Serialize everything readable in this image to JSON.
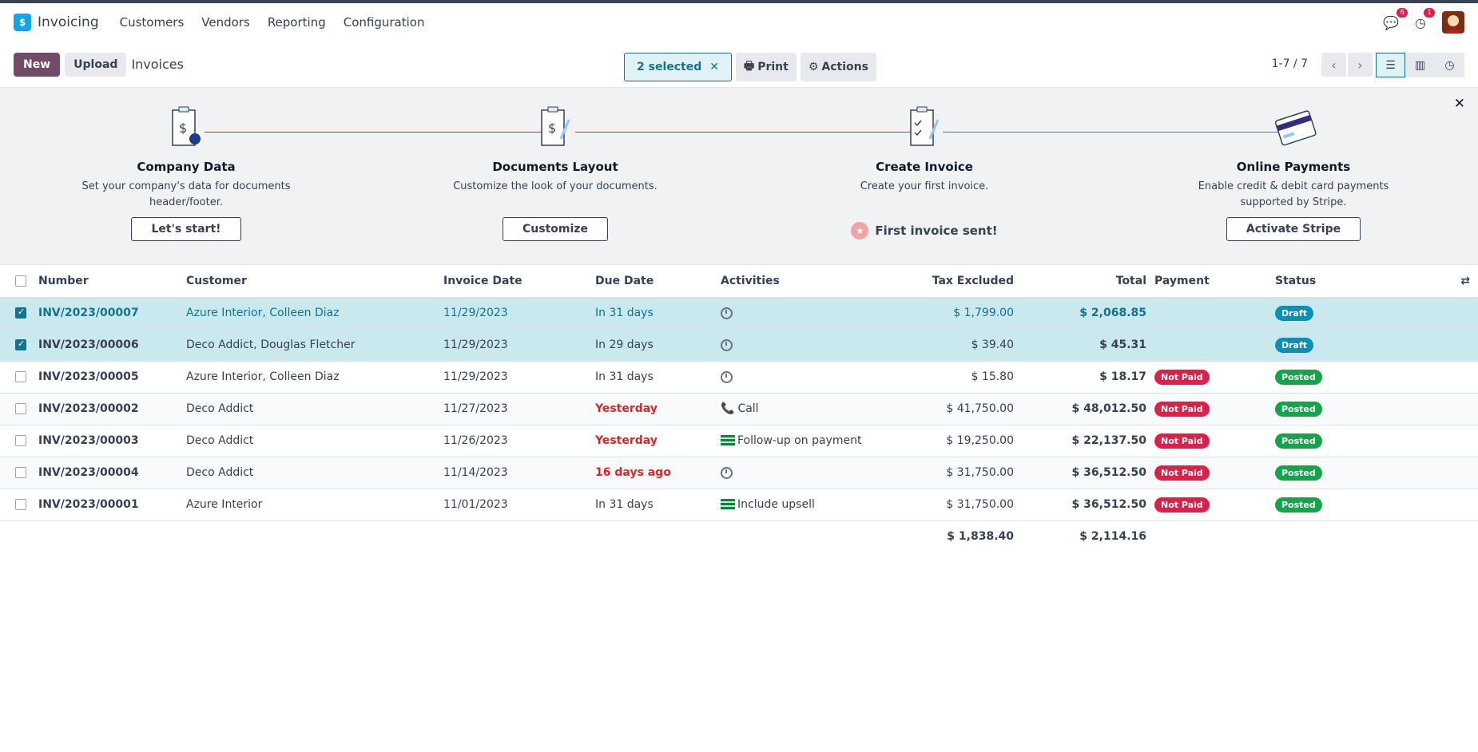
{
  "app": {
    "name": "Invoicing",
    "logo_icon": "invoicing-app-logo",
    "accent": "#714b67"
  },
  "nav": [
    "Customers",
    "Vendors",
    "Reporting",
    "Configuration"
  ],
  "systray": {
    "messages_count": "6",
    "activities_count": "1"
  },
  "control": {
    "new_label": "New",
    "upload_label": "Upload",
    "title": "Invoices",
    "selected_label": "2 selected",
    "print_label": "Print",
    "actions_label": "Actions",
    "pager": "1-7 / 7"
  },
  "onboarding": {
    "steps": [
      {
        "title": "Company Data",
        "desc": "Set your company's data for documents header/footer.",
        "button": "Let's start!"
      },
      {
        "title": "Documents Layout",
        "desc": "Customize the look of your documents.",
        "button": "Customize"
      },
      {
        "title": "Create Invoice",
        "desc": "Create your first invoice.",
        "done": "First invoice sent!"
      },
      {
        "title": "Online Payments",
        "desc": "Enable credit & debit card payments supported by Stripe.",
        "button": "Activate Stripe"
      }
    ]
  },
  "table": {
    "headers": {
      "number": "Number",
      "customer": "Customer",
      "invoice_date": "Invoice Date",
      "due_date": "Due Date",
      "activities": "Activities",
      "tax_excluded": "Tax Excluded",
      "total": "Total",
      "payment": "Payment",
      "status": "Status"
    },
    "rows": [
      {
        "number": "INV/2023/00007",
        "customer": "Azure Interior, Colleen Diaz",
        "invoice_date": "11/29/2023",
        "due_date": "In 31 days",
        "activity": "",
        "tax_excluded": "$ 1,799.00",
        "total": "$ 2,068.85",
        "payment": "",
        "status": "Draft"
      },
      {
        "number": "INV/2023/00006",
        "customer": "Deco Addict, Douglas Fletcher",
        "invoice_date": "11/29/2023",
        "due_date": "In 29 days",
        "activity": "",
        "tax_excluded": "$ 39.40",
        "total": "$ 45.31",
        "payment": "",
        "status": "Draft"
      },
      {
        "number": "INV/2023/00005",
        "customer": "Azure Interior, Colleen Diaz",
        "invoice_date": "11/29/2023",
        "due_date": "In 31 days",
        "activity": "",
        "tax_excluded": "$ 15.80",
        "total": "$ 18.17",
        "payment": "Not Paid",
        "status": "Posted"
      },
      {
        "number": "INV/2023/00002",
        "customer": "Deco Addict",
        "invoice_date": "11/27/2023",
        "due_date": "Yesterday",
        "activity": "Call",
        "tax_excluded": "$ 41,750.00",
        "total": "$ 48,012.50",
        "payment": "Not Paid",
        "status": "Posted"
      },
      {
        "number": "INV/2023/00003",
        "customer": "Deco Addict",
        "invoice_date": "11/26/2023",
        "due_date": "Yesterday",
        "activity": "Follow-up on payment",
        "tax_excluded": "$ 19,250.00",
        "total": "$ 22,137.50",
        "payment": "Not Paid",
        "status": "Posted"
      },
      {
        "number": "INV/2023/00004",
        "customer": "Deco Addict",
        "invoice_date": "11/14/2023",
        "due_date": "16 days ago",
        "activity": "",
        "tax_excluded": "$ 31,750.00",
        "total": "$ 36,512.50",
        "payment": "Not Paid",
        "status": "Posted"
      },
      {
        "number": "INV/2023/00001",
        "customer": "Azure Interior",
        "invoice_date": "11/01/2023",
        "due_date": "In 31 days",
        "activity": "Include upsell",
        "tax_excluded": "$ 31,750.00",
        "total": "$ 36,512.50",
        "payment": "Not Paid",
        "status": "Posted"
      }
    ],
    "totals": {
      "tax_excluded": "$ 1,838.40",
      "total": "$ 2,114.16"
    }
  }
}
